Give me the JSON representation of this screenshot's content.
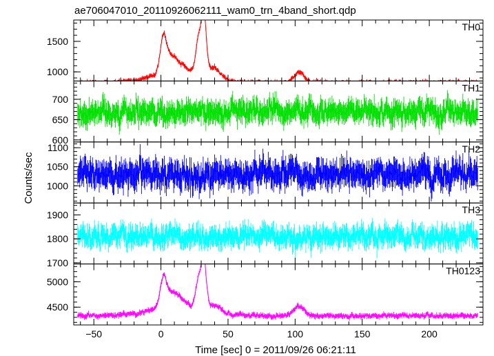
{
  "chart_data": {
    "type": "line",
    "title": "ae706047010_20110926062111_wam0_trn_4band_short.qdp",
    "xlabel": "Time [sec] 0 = 2011/09/26 06:21:11",
    "ylabel": "Counts/sec",
    "xlim": [
      -65,
      240
    ],
    "x_ticks": [
      -50,
      0,
      50,
      100,
      150,
      200
    ],
    "x_tick_labels": [
      "−50",
      "0",
      "50",
      "100",
      "150",
      "200"
    ],
    "grid": false,
    "panels": [
      {
        "name": "TH0",
        "color": "#ff0000",
        "ylim": [
          850,
          1850
        ],
        "y_ticks": [
          1000,
          1500
        ],
        "y_tick_labels": [
          "1000",
          "1500"
        ],
        "baseline": 820,
        "noise": 25,
        "err": 30,
        "peaks": [
          {
            "x": 2,
            "amp": 600,
            "width": 2.5
          },
          {
            "x": 8,
            "amp": 200,
            "width": 3
          },
          {
            "x": 14,
            "amp": 120,
            "width": 4
          },
          {
            "x": 28,
            "amp": 550,
            "width": 2
          },
          {
            "x": 32,
            "amp": 950,
            "width": 1.8
          },
          {
            "x": 40,
            "amp": 150,
            "width": 4
          },
          {
            "x": 103,
            "amp": 180,
            "width": 4
          }
        ],
        "broad_bump": {
          "x": 15,
          "amp": 200,
          "width": 20
        }
      },
      {
        "name": "TH1",
        "color": "#00e000",
        "ylim": [
          595,
          745
        ],
        "y_ticks": [
          600,
          650,
          700
        ],
        "y_tick_labels": [
          "600",
          "650",
          "700"
        ],
        "baseline": 668,
        "noise": 18,
        "err": 22,
        "peaks": [],
        "broad_bump": {
          "x": 0,
          "amp": 0,
          "width": 1
        }
      },
      {
        "name": "TH2",
        "color": "#0000ff",
        "ylim": [
          955,
          1115
        ],
        "y_ticks": [
          1000,
          1050,
          1100
        ],
        "y_tick_labels": [
          "1000",
          "1050",
          "1100"
        ],
        "baseline": 1030,
        "noise": 22,
        "err": 28,
        "peaks": [],
        "broad_bump": {
          "x": 0,
          "amp": 0,
          "width": 1
        }
      },
      {
        "name": "TH3",
        "color": "#00ffff",
        "ylim": [
          1695,
          1950
        ],
        "y_ticks": [
          1700,
          1800,
          1900
        ],
        "y_tick_labels": [
          "1700",
          "1800",
          "1900"
        ],
        "baseline": 1810,
        "noise": 28,
        "err": 35,
        "peaks": [],
        "broad_bump": {
          "x": 0,
          "amp": 0,
          "width": 1
        }
      },
      {
        "name": "TH0123",
        "color": "#ff00ff",
        "ylim": [
          4150,
          5350
        ],
        "y_ticks": [
          4500,
          5000
        ],
        "y_tick_labels": [
          "4500",
          "5000"
        ],
        "baseline": 4330,
        "noise": 30,
        "err": 40,
        "peaks": [
          {
            "x": 2,
            "amp": 600,
            "width": 2.5
          },
          {
            "x": 8,
            "amp": 200,
            "width": 3
          },
          {
            "x": 14,
            "amp": 150,
            "width": 4
          },
          {
            "x": 28,
            "amp": 550,
            "width": 2
          },
          {
            "x": 32,
            "amp": 950,
            "width": 1.8
          },
          {
            "x": 40,
            "amp": 120,
            "width": 4
          },
          {
            "x": 103,
            "amp": 180,
            "width": 4
          }
        ],
        "broad_bump": {
          "x": 15,
          "amp": 200,
          "width": 20
        }
      }
    ]
  }
}
